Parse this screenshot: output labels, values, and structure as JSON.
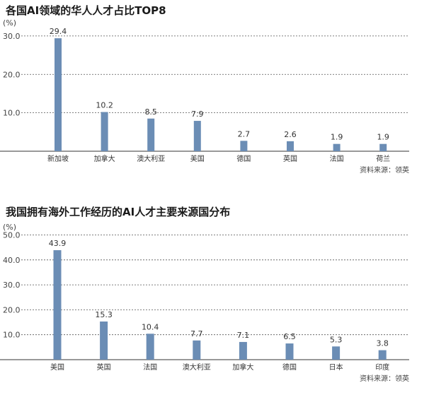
{
  "chart_data": [
    {
      "type": "bar",
      "title": "各国AI领域的华人人才占比TOP8",
      "unit_label": "(%)",
      "categories": [
        "新加坡",
        "加拿大",
        "澳大利亚",
        "美国",
        "德国",
        "英国",
        "法国",
        "荷兰"
      ],
      "values": [
        29.4,
        10.2,
        8.5,
        7.9,
        2.7,
        2.6,
        1.9,
        1.9
      ],
      "value_labels": [
        "29.4",
        "10.2",
        "8.5",
        "7.9",
        "2.7",
        "2.6",
        "1.9",
        "1.9"
      ],
      "yticks": [
        "10.0",
        "20.0",
        "30.0"
      ],
      "ylim": [
        0,
        32
      ],
      "grid": true,
      "source": "资料来源：领英",
      "bar_color": "#6b8db5"
    },
    {
      "type": "bar",
      "title": "我国拥有海外工作经历的AI人才主要来源国分布",
      "unit_label": "(%)",
      "categories": [
        "美国",
        "英国",
        "法国",
        "澳大利亚",
        "加拿大",
        "德国",
        "日本",
        "印度"
      ],
      "values": [
        43.9,
        15.3,
        10.4,
        7.7,
        7.1,
        6.5,
        5.3,
        3.8
      ],
      "value_labels": [
        "43.9",
        "15.3",
        "10.4",
        "7.7",
        "7.1",
        "6.5",
        "5.3",
        "3.8"
      ],
      "yticks": [
        "10.0",
        "20.0",
        "30.0",
        "40.0",
        "50.0"
      ],
      "ylim": [
        0,
        51
      ],
      "grid": true,
      "source": "资料来源：领英",
      "bar_color": "#6b8db5"
    }
  ]
}
